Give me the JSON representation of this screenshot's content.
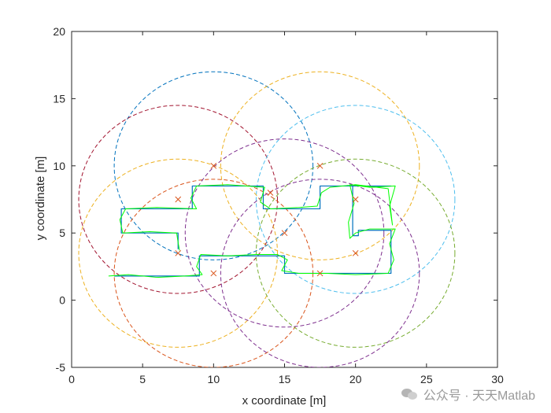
{
  "chart_data": {
    "type": "line",
    "xlabel": "x coordinate [m]",
    "ylabel": "y coordinate [m]",
    "xlim": [
      0,
      30
    ],
    "ylim": [
      -5,
      20
    ],
    "xticks": [
      "0",
      "5",
      "10",
      "15",
      "20",
      "25",
      "30"
    ],
    "yticks": [
      "-5",
      "0",
      "5",
      "10",
      "15",
      "20"
    ],
    "grid": false,
    "circles": [
      {
        "cx": 10,
        "cy": 10,
        "r": 7,
        "color": "#0072BD"
      },
      {
        "cx": 17.5,
        "cy": 10,
        "r": 7,
        "color": "#EDB120"
      },
      {
        "cx": 7.5,
        "cy": 7.5,
        "r": 7,
        "color": "#A2142F"
      },
      {
        "cx": 20,
        "cy": 7.5,
        "r": 7,
        "color": "#4DBEEE"
      },
      {
        "cx": 7.5,
        "cy": 3.5,
        "r": 7,
        "color": "#EDB120"
      },
      {
        "cx": 10,
        "cy": 2,
        "r": 7,
        "color": "#D95319"
      },
      {
        "cx": 15,
        "cy": 5,
        "r": 7,
        "color": "#7E2F8E"
      },
      {
        "cx": 20,
        "cy": 3.5,
        "r": 7,
        "color": "#77AC30"
      },
      {
        "cx": 17.5,
        "cy": 2,
        "r": 7,
        "color": "#7E2F8E"
      }
    ],
    "anchors": {
      "color": "#D95319",
      "points": [
        [
          10,
          10
        ],
        [
          17.5,
          10
        ],
        [
          7.5,
          7.5
        ],
        [
          20,
          7.5
        ],
        [
          7.5,
          3.5
        ],
        [
          10,
          2
        ],
        [
          15,
          5
        ],
        [
          20,
          3.5
        ],
        [
          17.5,
          2
        ],
        [
          14,
          8
        ]
      ]
    },
    "true_path": {
      "color": "#0072BD",
      "points": [
        [
          3,
          1.8
        ],
        [
          9,
          1.8
        ],
        [
          9,
          3.3
        ],
        [
          15,
          3.3
        ],
        [
          15,
          2
        ],
        [
          22.5,
          2
        ],
        [
          22.5,
          5.2
        ],
        [
          20.2,
          5.2
        ],
        [
          20.2,
          4.8
        ],
        [
          20,
          4.8
        ],
        [
          19.8,
          4.8
        ],
        [
          19.8,
          8.5
        ],
        [
          22.5,
          8.5
        ],
        [
          20,
          8.5
        ],
        [
          18,
          8.5
        ],
        [
          17.5,
          8.5
        ],
        [
          17.5,
          7
        ],
        [
          17.5,
          6.8
        ],
        [
          13.5,
          6.8
        ],
        [
          13.5,
          8.5
        ],
        [
          8.5,
          8.5
        ],
        [
          8.5,
          6.8
        ],
        [
          3.5,
          6.8
        ],
        [
          3.5,
          5
        ],
        [
          7.5,
          5
        ],
        [
          7.5,
          3.8
        ]
      ]
    },
    "estimated_path": {
      "color": "#00FF00",
      "points": [
        [
          2.6,
          1.8
        ],
        [
          4,
          1.9
        ],
        [
          6,
          1.7
        ],
        [
          8,
          1.8
        ],
        [
          9.2,
          1.9
        ],
        [
          8.8,
          2.5
        ],
        [
          9.1,
          3.4
        ],
        [
          11,
          3.3
        ],
        [
          13,
          3.4
        ],
        [
          14.5,
          3.4
        ],
        [
          15.2,
          3
        ],
        [
          14.8,
          2.2
        ],
        [
          16,
          2
        ],
        [
          18,
          2
        ],
        [
          20,
          1.9
        ],
        [
          22.3,
          2
        ],
        [
          22.7,
          3
        ],
        [
          22.4,
          4.2
        ],
        [
          22.8,
          5.3
        ],
        [
          21,
          5.3
        ],
        [
          20,
          5
        ],
        [
          19.6,
          4.6
        ],
        [
          19.5,
          5.8
        ],
        [
          19.9,
          7.2
        ],
        [
          19.6,
          8.6
        ],
        [
          21,
          8.4
        ],
        [
          22.8,
          8.5
        ],
        [
          22.4,
          7
        ],
        [
          22.6,
          5.6
        ],
        [
          22.3,
          8.3
        ],
        [
          20,
          8.6
        ],
        [
          18.2,
          8.4
        ],
        [
          17.6,
          8
        ],
        [
          17.3,
          7
        ],
        [
          16,
          6.9
        ],
        [
          14,
          6.8
        ],
        [
          13.3,
          7.3
        ],
        [
          13.6,
          8.4
        ],
        [
          11,
          8.6
        ],
        [
          8.8,
          8.5
        ],
        [
          8.4,
          7.6
        ],
        [
          8.8,
          6.8
        ],
        [
          6,
          6.9
        ],
        [
          3.8,
          6.8
        ],
        [
          3.4,
          6
        ],
        [
          3.6,
          5
        ],
        [
          5.5,
          5.1
        ],
        [
          7.4,
          5
        ],
        [
          7.5,
          4.3
        ],
        [
          7.6,
          3.7
        ]
      ]
    }
  }
}
